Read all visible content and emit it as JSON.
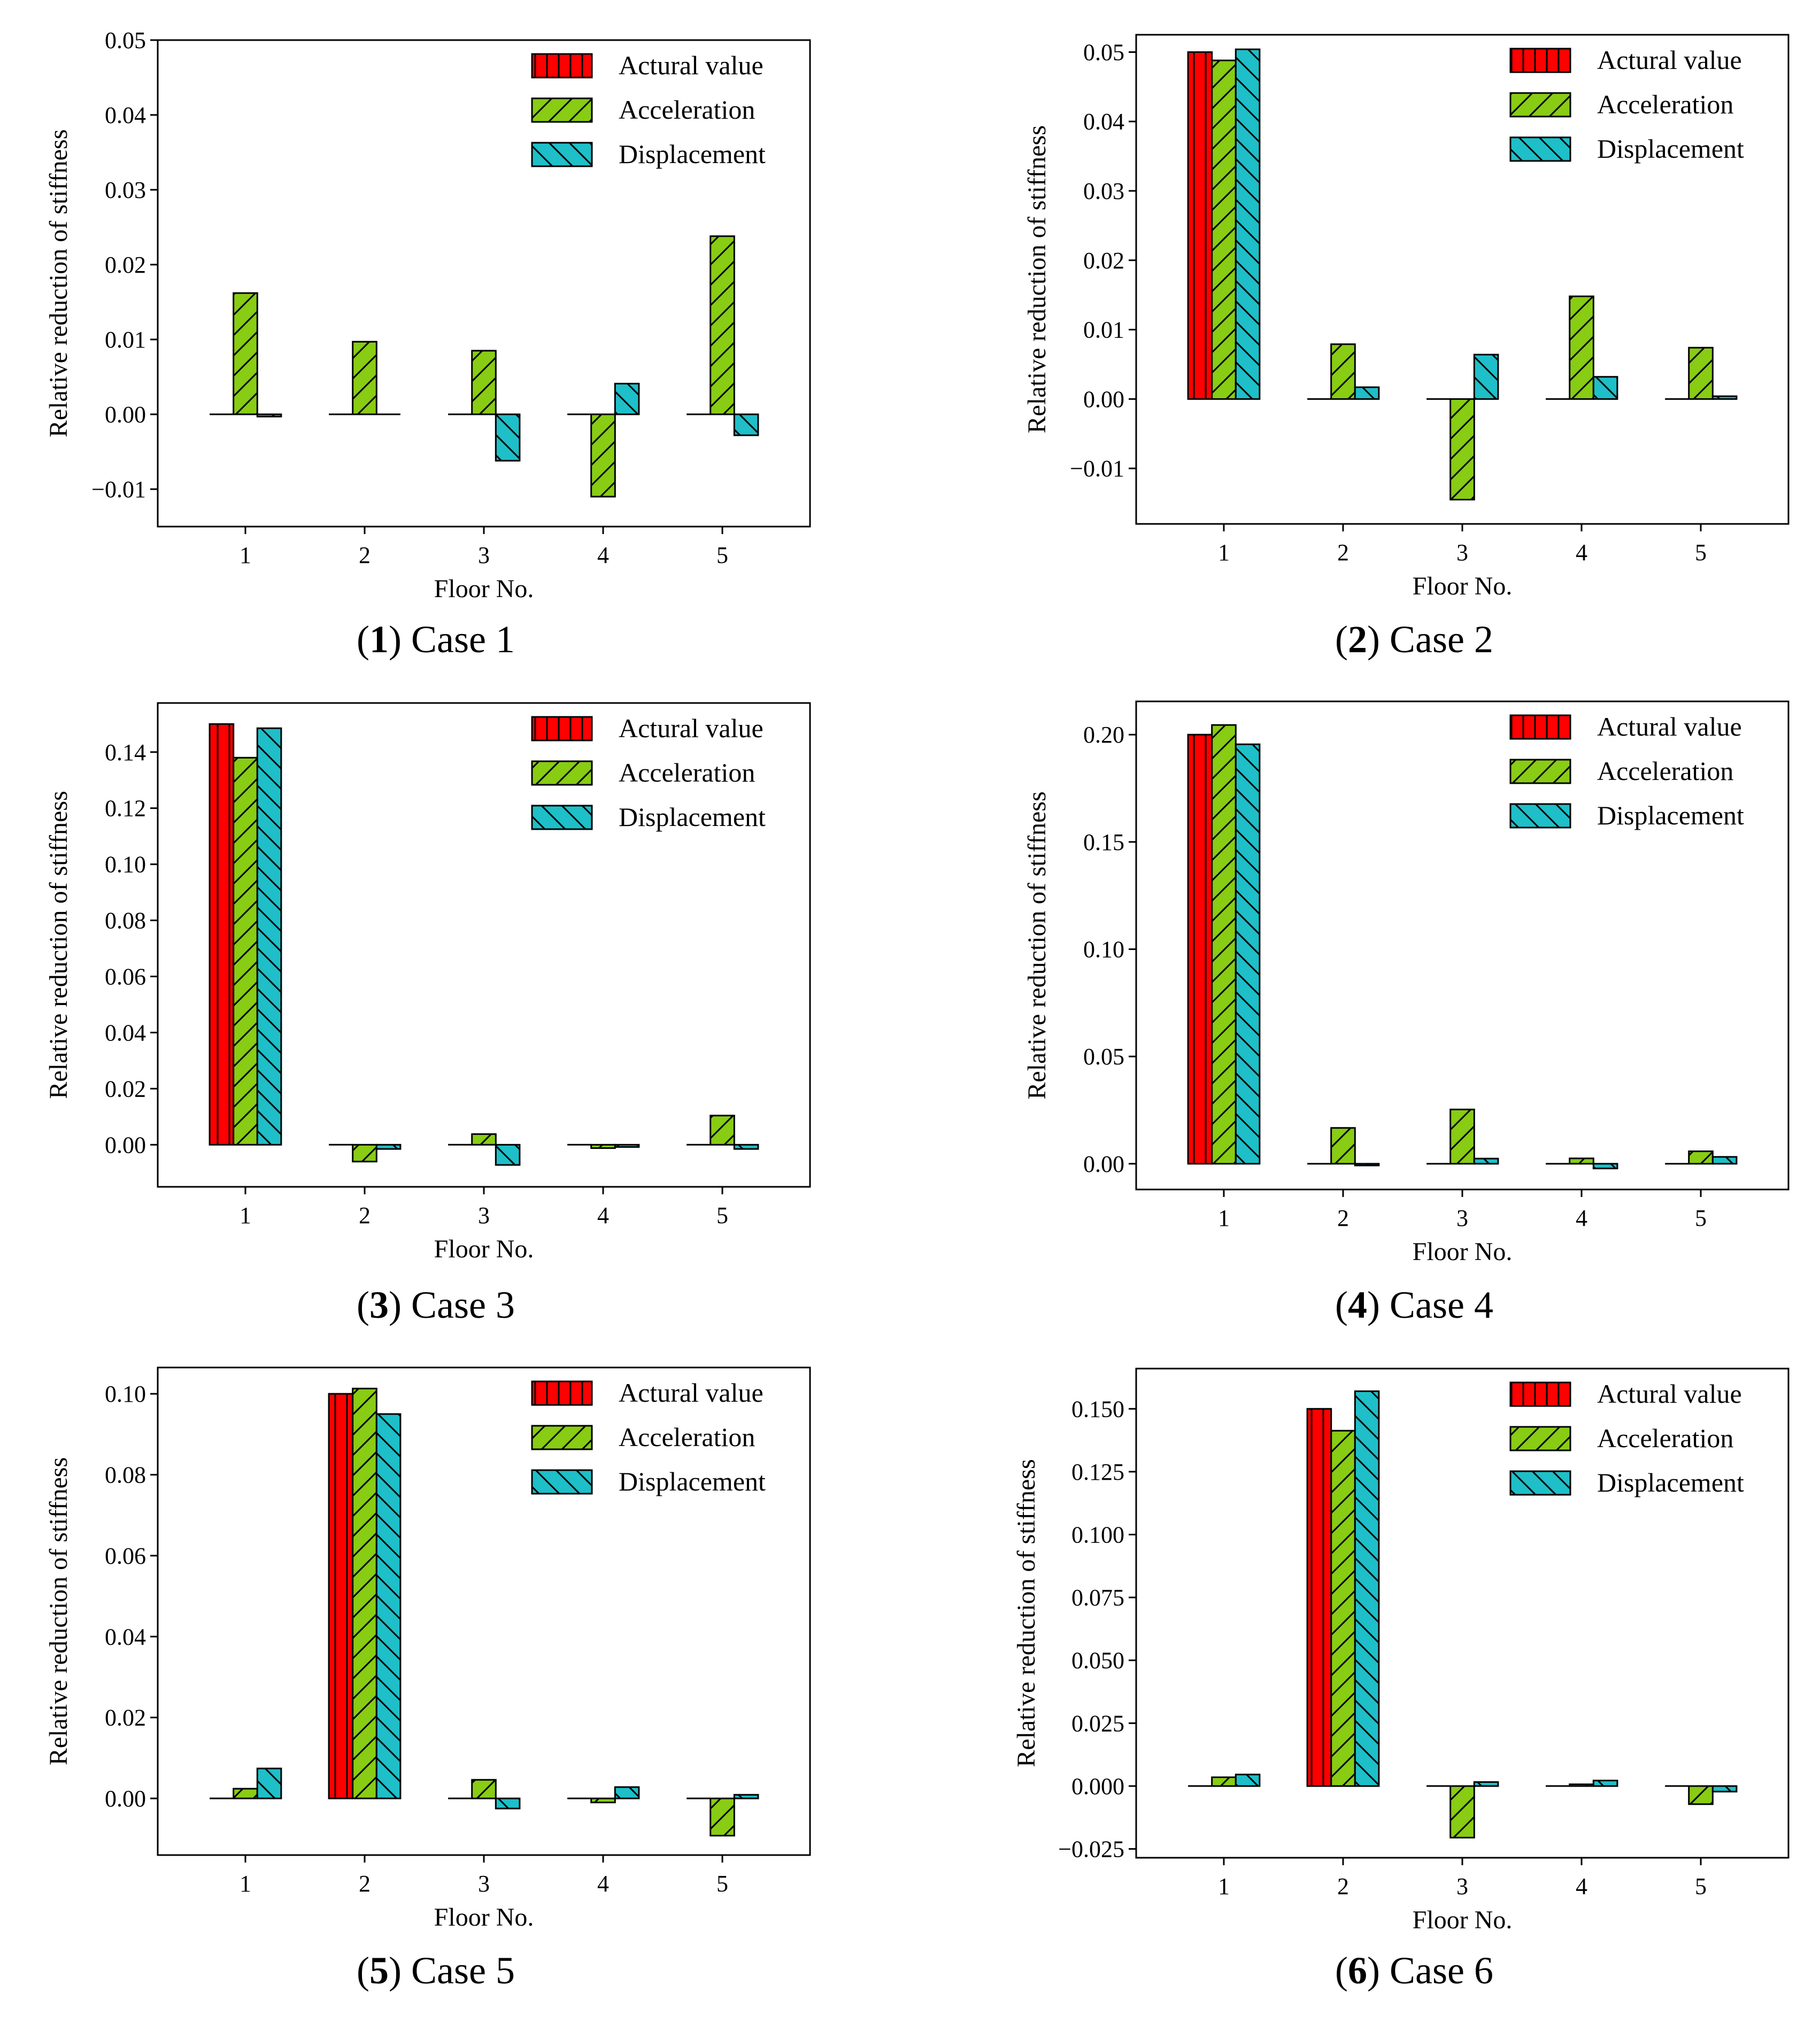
{
  "figure": {
    "legend_labels": [
      "Actural value",
      "Acceleration",
      "Displacement"
    ],
    "colors": {
      "actual": "#ff0000",
      "acceleration": "#88cc14",
      "displacement": "#1ebfc8"
    }
  },
  "chart_data": [
    {
      "type": "bar",
      "caption_num": "1",
      "caption_text": "Case 1",
      "xlabel": "Floor No.",
      "ylabel": "Relative reduction of stiffness",
      "categories": [
        "1",
        "2",
        "3",
        "4",
        "5"
      ],
      "ylim": [
        -0.015,
        0.05
      ],
      "yticks": [
        -0.01,
        0.0,
        0.01,
        0.02,
        0.03,
        0.04,
        0.05
      ],
      "ytick_labels": [
        "−0.01",
        "0.00",
        "0.01",
        "0.02",
        "0.03",
        "0.04",
        "0.05"
      ],
      "legend_position": "top-right",
      "series": [
        {
          "name": "Actural value",
          "values": [
            0,
            0,
            0,
            0,
            0
          ]
        },
        {
          "name": "Acceleration",
          "values": [
            0.0162,
            0.0097,
            0.0085,
            -0.011,
            0.0238
          ]
        },
        {
          "name": "Displacement",
          "values": [
            -0.0003,
            0.0,
            -0.0062,
            0.0041,
            -0.0028
          ]
        }
      ]
    },
    {
      "type": "bar",
      "caption_num": "2",
      "caption_text": "Case 2",
      "xlabel": "Floor No.",
      "ylabel": "Relative reduction of stiffness",
      "categories": [
        "1",
        "2",
        "3",
        "4",
        "5"
      ],
      "ylim": [
        -0.018,
        0.0525
      ],
      "yticks": [
        -0.01,
        0.0,
        0.01,
        0.02,
        0.03,
        0.04,
        0.05
      ],
      "ytick_labels": [
        "−0.01",
        "0.00",
        "0.01",
        "0.02",
        "0.03",
        "0.04",
        "0.05"
      ],
      "legend_position": "top-right",
      "series": [
        {
          "name": "Actural value",
          "values": [
            0.05,
            0,
            0,
            0,
            0
          ]
        },
        {
          "name": "Acceleration",
          "values": [
            0.0488,
            0.0079,
            -0.0145,
            0.0148,
            0.0074
          ]
        },
        {
          "name": "Displacement",
          "values": [
            0.0504,
            0.0017,
            0.0064,
            0.0032,
            0.0004
          ]
        }
      ]
    },
    {
      "type": "bar",
      "caption_num": "3",
      "caption_text": "Case 3",
      "xlabel": "Floor No.",
      "ylabel": "Relative reduction of stiffness",
      "categories": [
        "1",
        "2",
        "3",
        "4",
        "5"
      ],
      "ylim": [
        -0.015,
        0.1575
      ],
      "yticks": [
        0.0,
        0.02,
        0.04,
        0.06,
        0.08,
        0.1,
        0.12,
        0.14
      ],
      "ytick_labels": [
        "0.00",
        "0.02",
        "0.04",
        "0.06",
        "0.08",
        "0.10",
        "0.12",
        "0.14"
      ],
      "legend_position": "top-right",
      "series": [
        {
          "name": "Actural value",
          "values": [
            0.15,
            0,
            0,
            0,
            0
          ]
        },
        {
          "name": "Acceleration",
          "values": [
            0.138,
            -0.006,
            0.0038,
            -0.0012,
            0.0104
          ]
        },
        {
          "name": "Displacement",
          "values": [
            0.1485,
            -0.0015,
            -0.0072,
            -0.0008,
            -0.0015
          ]
        }
      ]
    },
    {
      "type": "bar",
      "caption_num": "4",
      "caption_text": "Case 4",
      "xlabel": "Floor No.",
      "ylabel": "Relative reduction of stiffness",
      "categories": [
        "1",
        "2",
        "3",
        "4",
        "5"
      ],
      "ylim": [
        -0.012,
        0.2155
      ],
      "yticks": [
        0.0,
        0.05,
        0.1,
        0.15,
        0.2
      ],
      "ytick_labels": [
        "0.00",
        "0.05",
        "0.10",
        "0.15",
        "0.20"
      ],
      "legend_position": "top-right",
      "series": [
        {
          "name": "Actural value",
          "values": [
            0.2,
            0,
            0,
            0,
            0
          ]
        },
        {
          "name": "Acceleration",
          "values": [
            0.2045,
            0.0167,
            0.0253,
            0.0025,
            0.0058
          ]
        },
        {
          "name": "Displacement",
          "values": [
            0.1955,
            -0.0008,
            0.0024,
            -0.0022,
            0.0032
          ]
        }
      ]
    },
    {
      "type": "bar",
      "caption_num": "5",
      "caption_text": "Case 5",
      "xlabel": "Floor No.",
      "ylabel": "Relative reduction of stiffness",
      "categories": [
        "1",
        "2",
        "3",
        "4",
        "5"
      ],
      "ylim": [
        -0.014,
        0.1065
      ],
      "yticks": [
        0.0,
        0.02,
        0.04,
        0.06,
        0.08,
        0.1
      ],
      "ytick_labels": [
        "0.00",
        "0.02",
        "0.04",
        "0.06",
        "0.08",
        "0.10"
      ],
      "legend_position": "top-right",
      "series": [
        {
          "name": "Actural value",
          "values": [
            0,
            0.1,
            0,
            0,
            0
          ]
        },
        {
          "name": "Acceleration",
          "values": [
            0.0024,
            0.1013,
            0.0046,
            -0.001,
            -0.0092
          ]
        },
        {
          "name": "Displacement",
          "values": [
            0.0074,
            0.095,
            -0.0025,
            0.0028,
            0.0009
          ]
        }
      ]
    },
    {
      "type": "bar",
      "caption_num": "6",
      "caption_text": "Case 6",
      "xlabel": "Floor No.",
      "ylabel": "Relative reduction of stiffness",
      "categories": [
        "1",
        "2",
        "3",
        "4",
        "5"
      ],
      "ylim": [
        -0.0285,
        0.166
      ],
      "yticks": [
        -0.025,
        0.0,
        0.025,
        0.05,
        0.075,
        0.1,
        0.125,
        0.15
      ],
      "ytick_labels": [
        "−0.025",
        "0.000",
        "0.025",
        "0.050",
        "0.075",
        "0.100",
        "0.125",
        "0.150"
      ],
      "legend_position": "top-right",
      "series": [
        {
          "name": "Actural value",
          "values": [
            0,
            0.15,
            0,
            0,
            0
          ]
        },
        {
          "name": "Acceleration",
          "values": [
            0.0035,
            0.1413,
            -0.0205,
            0.0007,
            -0.0072
          ]
        },
        {
          "name": "Displacement",
          "values": [
            0.0046,
            0.157,
            0.0016,
            0.0022,
            -0.0022
          ]
        }
      ]
    }
  ]
}
